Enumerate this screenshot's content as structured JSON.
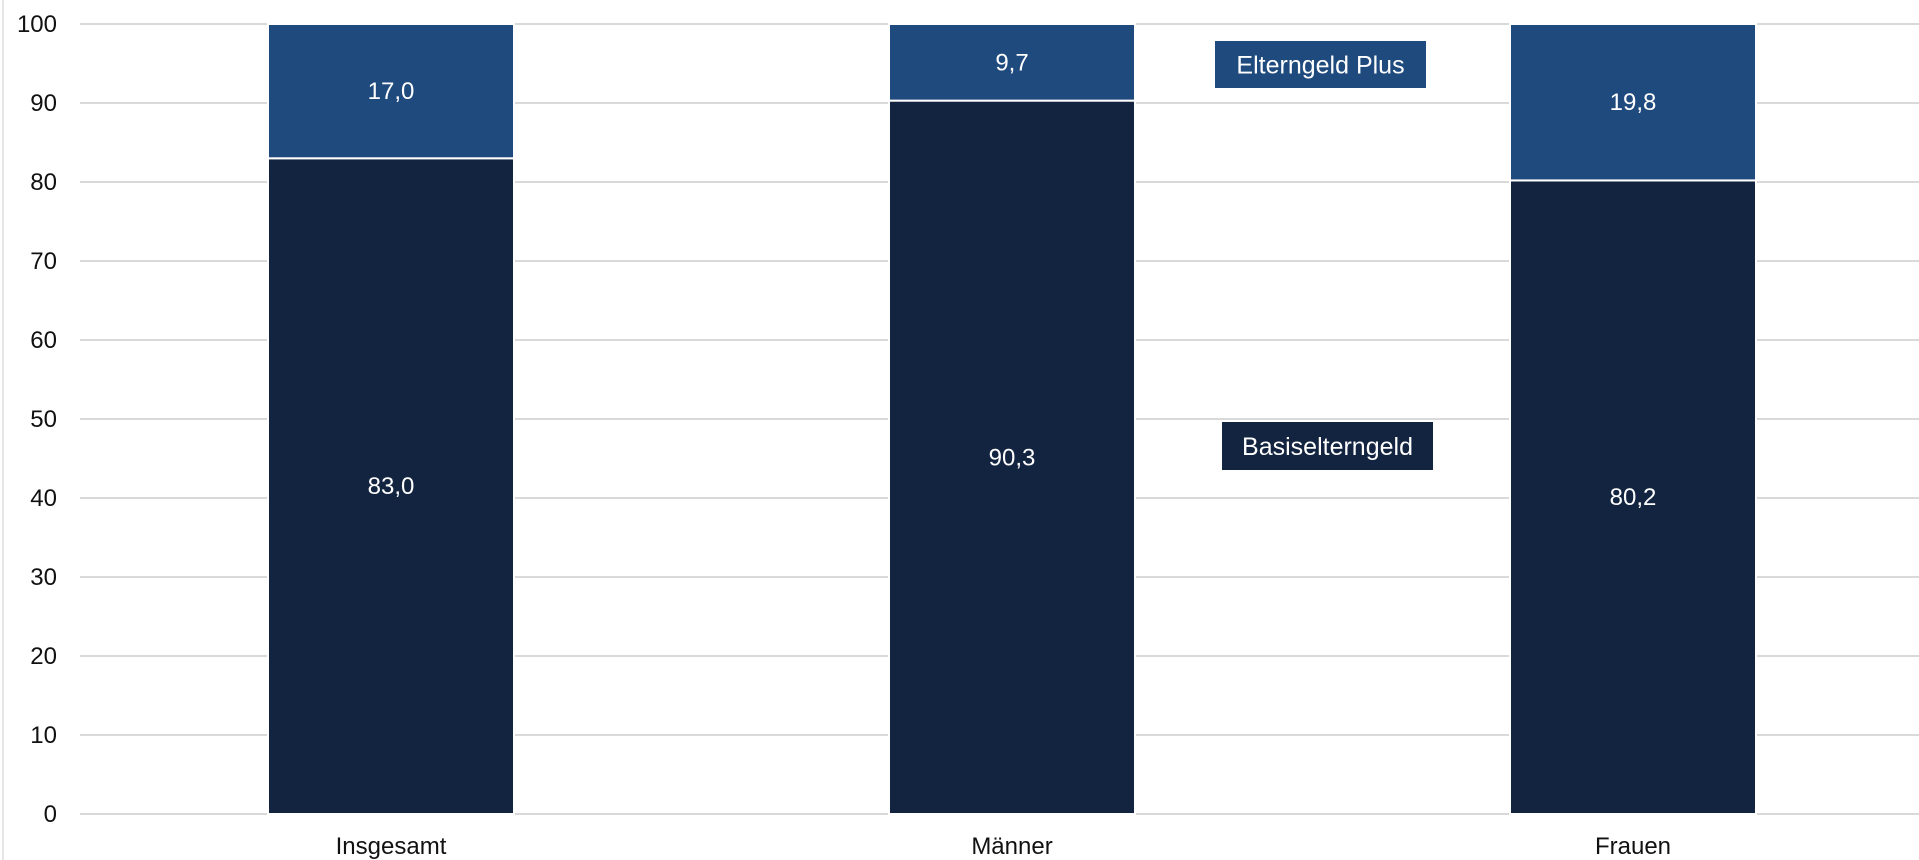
{
  "chart_data": {
    "type": "bar",
    "stacked": true,
    "categories": [
      "Insgesamt",
      "Männer",
      "Frauen"
    ],
    "series": [
      {
        "name": "Basiselterngeld",
        "values": [
          83.0,
          90.3,
          80.2
        ],
        "labels": [
          "83,0",
          "90,3",
          "80,2"
        ],
        "color": "#12243f"
      },
      {
        "name": "Elterngeld Plus",
        "values": [
          17.0,
          9.7,
          19.8
        ],
        "labels": [
          "17,0",
          "9,7",
          "19,8"
        ],
        "color": "#1f4a7e"
      }
    ],
    "ylim": [
      0,
      100
    ],
    "yticks": [
      0,
      10,
      20,
      30,
      40,
      50,
      60,
      70,
      80,
      90,
      100
    ],
    "grid": true,
    "legend": "inline labels between bars"
  }
}
